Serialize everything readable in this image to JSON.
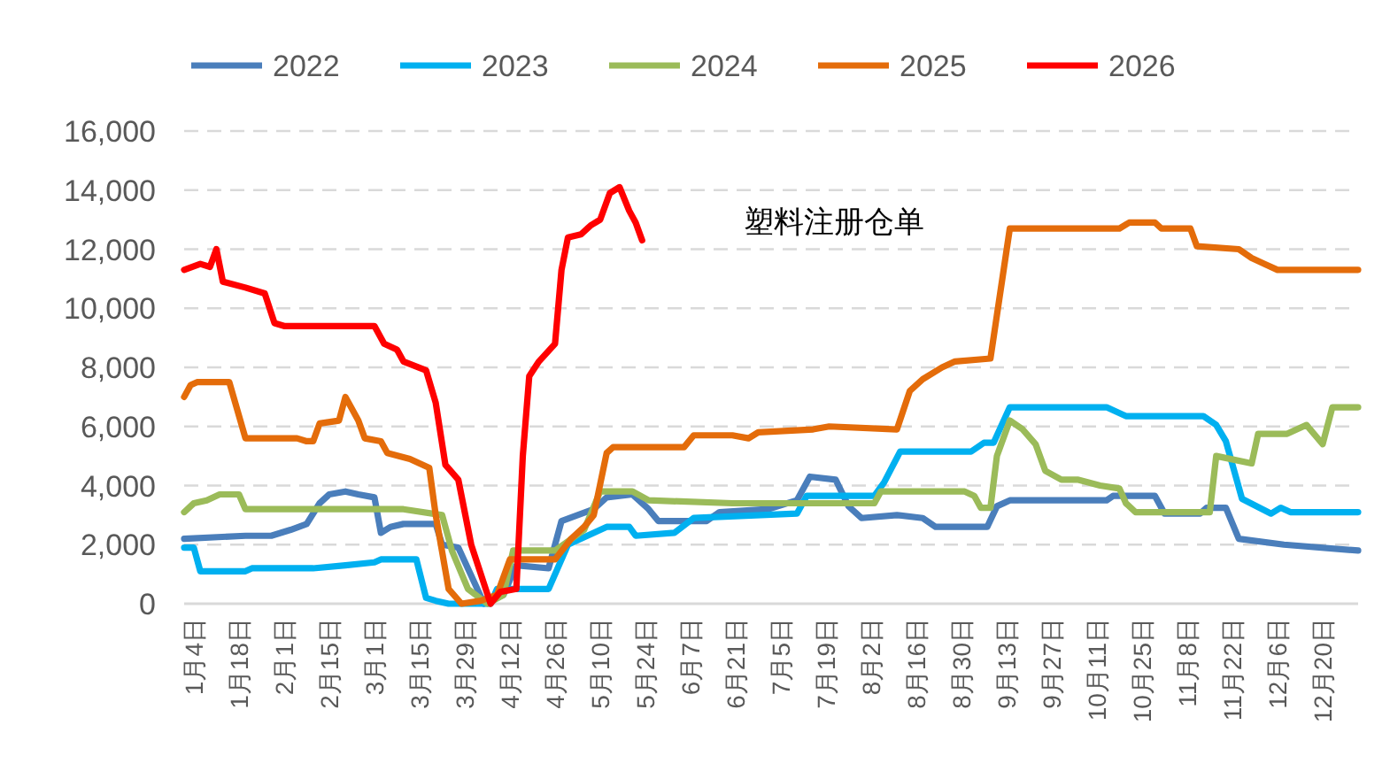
{
  "chart_data": {
    "type": "line",
    "annotations": [
      "塑料注册仓单"
    ],
    "xlim": [
      "--01-01",
      "--12-31"
    ],
    "xticks": [
      {
        "value": "--01-04",
        "label": "1月4日"
      },
      {
        "value": "--01-18",
        "label": "1月18日"
      },
      {
        "value": "--02-01",
        "label": "2月1日"
      },
      {
        "value": "--02-15",
        "label": "2月15日"
      },
      {
        "value": "--03-01",
        "label": "3月1日"
      },
      {
        "value": "--03-15",
        "label": "3月15日"
      },
      {
        "value": "--03-29",
        "label": "3月29日"
      },
      {
        "value": "--04-12",
        "label": "4月12日"
      },
      {
        "value": "--04-26",
        "label": "4月26日"
      },
      {
        "value": "--05-10",
        "label": "5月10日"
      },
      {
        "value": "--05-24",
        "label": "5月24日"
      },
      {
        "value": "--06-07",
        "label": "6月7日"
      },
      {
        "value": "--06-21",
        "label": "6月21日"
      },
      {
        "value": "--07-05",
        "label": "7月5日"
      },
      {
        "value": "--07-19",
        "label": "7月19日"
      },
      {
        "value": "--08-02",
        "label": "8月2日"
      },
      {
        "value": "--08-16",
        "label": "8月16日"
      },
      {
        "value": "--08-30",
        "label": "8月30日"
      },
      {
        "value": "--09-13",
        "label": "9月13日"
      },
      {
        "value": "--09-27",
        "label": "9月27日"
      },
      {
        "value": "--10-11",
        "label": "10月11日"
      },
      {
        "value": "--10-25",
        "label": "10月25日"
      },
      {
        "value": "--11-08",
        "label": "11月8日"
      },
      {
        "value": "--11-22",
        "label": "11月22日"
      },
      {
        "value": "--12-06",
        "label": "12月6日"
      },
      {
        "value": "--12-20",
        "label": "12月20日"
      }
    ],
    "ylim": [
      0,
      16000
    ],
    "yticks": [
      0,
      {
        "value": 2000,
        "label": "2,000"
      },
      {
        "value": 4000,
        "label": "4,000"
      },
      {
        "value": 6000,
        "label": "6,000"
      },
      {
        "value": 8000,
        "label": "8,000"
      },
      {
        "value": 10000,
        "label": "10,000"
      },
      {
        "value": 12000,
        "label": "12,000"
      },
      {
        "value": 14000,
        "label": "14,000"
      },
      {
        "value": 16000,
        "label": "16,000"
      }
    ],
    "grid": "y",
    "legend": "top",
    "line_style": "solid",
    "marker": "none",
    "series": [
      {
        "name": "2022",
        "color": "#4a7ebb",
        "x": [
          "--01-01",
          "--01-20",
          "--01-28",
          "--02-03",
          "--02-08",
          "--02-12",
          "--02-15",
          "--02-20",
          "--02-24",
          "--03-01",
          "--03-03",
          "--03-06",
          "--03-10",
          "--03-20",
          "--03-22",
          "--03-27",
          "--04-04",
          "--04-10",
          "--04-14",
          "--04-24",
          "--04-28",
          "--05-08",
          "--05-12",
          "--05-20",
          "--05-25",
          "--05-28",
          "--06-12",
          "--06-16",
          "--07-01",
          "--07-10",
          "--07-14",
          "--07-22",
          "--07-26",
          "--07-30",
          "--08-10",
          "--08-18",
          "--08-22",
          "--09-07",
          "--09-10",
          "--09-14",
          "--10-14",
          "--10-16",
          "--10-29",
          "--11-01",
          "--11-12",
          "--11-14",
          "--11-20",
          "--11-24",
          "--12-08",
          "--12-31"
        ],
        "values": [
          2200,
          2300,
          2300,
          2500,
          2700,
          3400,
          3700,
          3800,
          3700,
          3600,
          2400,
          2600,
          2700,
          2700,
          2000,
          1900,
          0,
          300,
          1300,
          1200,
          2800,
          3200,
          3600,
          3700,
          3200,
          2800,
          2800,
          3100,
          3200,
          3500,
          4300,
          4200,
          3300,
          2900,
          3000,
          2900,
          2600,
          2600,
          3300,
          3500,
          3500,
          3650,
          3650,
          3050,
          3050,
          3250,
          3250,
          2200,
          2000,
          1800
        ]
      },
      {
        "name": "2023",
        "color": "#00b0f0",
        "x": [
          "--01-01",
          "--01-04",
          "--01-06",
          "--01-20",
          "--01-22",
          "--02-10",
          "--02-20",
          "--03-01",
          "--03-03",
          "--03-14",
          "--03-17",
          "--03-20",
          "--03-24",
          "--04-06",
          "--04-08",
          "--04-24",
          "--04-30",
          "--05-12",
          "--05-19",
          "--05-21",
          "--06-02",
          "--06-08",
          "--07-10",
          "--07-13",
          "--08-03",
          "--08-06",
          "--08-11",
          "--09-02",
          "--09-06",
          "--09-09",
          "--09-14",
          "--10-14",
          "--10-20",
          "--11-13",
          "--11-17",
          "--11-20",
          "--11-25",
          "--12-04",
          "--12-07",
          "--12-10",
          "--12-31"
        ],
        "values": [
          1900,
          1900,
          1100,
          1100,
          1200,
          1200,
          1300,
          1400,
          1500,
          1500,
          200,
          100,
          0,
          0,
          500,
          500,
          2000,
          2600,
          2600,
          2300,
          2400,
          2900,
          3050,
          3650,
          3650,
          4100,
          5150,
          5150,
          5450,
          5450,
          6650,
          6650,
          6350,
          6350,
          6050,
          5500,
          3550,
          3050,
          3250,
          3100,
          3100
        ]
      },
      {
        "name": "2024",
        "color": "#9bbb59",
        "x": [
          "--01-01",
          "--01-04",
          "--01-08",
          "--01-12",
          "--01-18",
          "--01-20",
          "--03-10",
          "--03-22",
          "--03-25",
          "--03-30",
          "--04-05",
          "--04-10",
          "--04-13",
          "--04-26",
          "--05-05",
          "--05-10",
          "--05-20",
          "--05-25",
          "--06-20",
          "--07-20",
          "--08-03",
          "--08-05",
          "--08-31",
          "--09-03",
          "--09-05",
          "--09-08",
          "--09-10",
          "--09-14",
          "--09-18",
          "--09-22",
          "--09-25",
          "--09-30",
          "--10-05",
          "--10-12",
          "--10-18",
          "--10-20",
          "--10-23",
          "--11-15",
          "--11-17",
          "--11-28",
          "--11-30",
          "--12-09",
          "--12-15",
          "--12-20",
          "--12-23",
          "--12-31"
        ],
        "values": [
          3100,
          3400,
          3500,
          3700,
          3700,
          3200,
          3200,
          3000,
          1800,
          500,
          0,
          300,
          1800,
          1800,
          2500,
          3800,
          3800,
          3500,
          3400,
          3400,
          3400,
          3800,
          3800,
          3650,
          3250,
          3250,
          5000,
          6200,
          5900,
          5400,
          4500,
          4200,
          4200,
          4000,
          3900,
          3400,
          3100,
          3100,
          5000,
          4750,
          5750,
          5750,
          6050,
          5400,
          6650,
          6650
        ]
      },
      {
        "name": "2025",
        "color": "#e46c0a",
        "x": [
          "--01-01",
          "--01-03",
          "--01-05",
          "--01-15",
          "--01-20",
          "--02-05",
          "--02-08",
          "--02-10",
          "--02-12",
          "--02-18",
          "--02-20",
          "--02-24",
          "--02-26",
          "--03-03",
          "--03-05",
          "--03-12",
          "--03-18",
          "--03-20",
          "--03-24",
          "--03-28",
          "--04-03",
          "--04-08",
          "--04-12",
          "--04-26",
          "--05-01",
          "--05-05",
          "--05-08",
          "--05-12",
          "--05-14",
          "--06-05",
          "--06-08",
          "--06-20",
          "--06-25",
          "--06-28",
          "--07-15",
          "--07-20",
          "--08-10",
          "--08-14",
          "--08-18",
          "--08-24",
          "--08-28",
          "--09-08",
          "--09-14",
          "--10-18",
          "--10-21",
          "--10-29",
          "--10-31",
          "--11-09",
          "--11-11",
          "--11-24",
          "--11-28",
          "--12-02",
          "--12-06",
          "--12-31"
        ],
        "values": [
          7000,
          7400,
          7500,
          7500,
          5600,
          5600,
          5500,
          5500,
          6100,
          6200,
          7000,
          6200,
          5600,
          5500,
          5100,
          4900,
          4600,
          3000,
          500,
          0,
          100,
          300,
          1500,
          1500,
          2200,
          2600,
          3000,
          5100,
          5300,
          5300,
          5700,
          5700,
          5600,
          5800,
          5900,
          6000,
          5900,
          7200,
          7600,
          8000,
          8200,
          8300,
          12700,
          12700,
          12900,
          12900,
          12700,
          12700,
          12100,
          12000,
          11700,
          11500,
          11300,
          11300
        ]
      },
      {
        "name": "2026",
        "color": "#ff0000",
        "x": [
          "--01-01",
          "--01-06",
          "--01-09",
          "--01-11",
          "--01-13",
          "--01-20",
          "--01-26",
          "--01-29",
          "--02-01",
          "--03-01",
          "--03-04",
          "--03-08",
          "--03-10",
          "--03-17",
          "--03-20",
          "--03-23",
          "--03-27",
          "--03-31",
          "--04-06",
          "--04-09",
          "--04-14",
          "--04-16",
          "--04-18",
          "--04-21",
          "--04-26",
          "--04-28",
          "--04-30",
          "--05-04",
          "--05-07",
          "--05-10",
          "--05-13",
          "--05-16",
          "--05-19",
          "--05-21",
          "--05-23"
        ],
        "values": [
          11300,
          11500,
          11400,
          12000,
          10900,
          10700,
          10500,
          9500,
          9400,
          9400,
          8800,
          8600,
          8200,
          7900,
          6800,
          4700,
          4200,
          2000,
          0,
          400,
          500,
          5000,
          7700,
          8200,
          8800,
          11300,
          12400,
          12500,
          12800,
          13000,
          13900,
          14100,
          13300,
          12900,
          12300
        ]
      }
    ]
  }
}
